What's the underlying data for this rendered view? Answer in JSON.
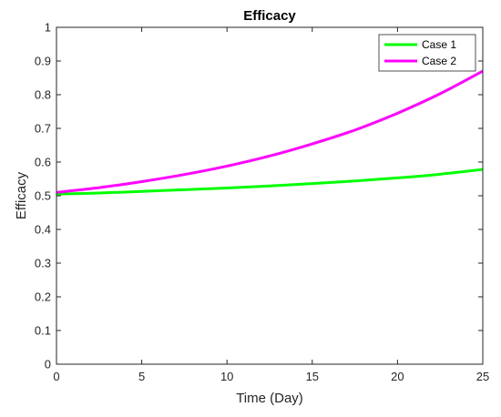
{
  "chart_data": {
    "type": "line",
    "title": "Efficacy",
    "xlabel": "Time (Day)",
    "ylabel": "Efficacy",
    "xlim": [
      0,
      25
    ],
    "ylim": [
      0,
      1
    ],
    "xticks": [
      0,
      5,
      10,
      15,
      20,
      25
    ],
    "yticks": [
      0,
      0.1,
      0.2,
      0.3,
      0.4,
      0.5,
      0.6,
      0.7,
      0.8,
      0.9,
      1
    ],
    "xtick_labels": [
      "0",
      "5",
      "10",
      "15",
      "20",
      "25"
    ],
    "ytick_labels": [
      "0",
      "0.1",
      "0.2",
      "0.3",
      "0.4",
      "0.5",
      "0.6",
      "0.7",
      "0.8",
      "0.9",
      "1"
    ],
    "grid": false,
    "legend_position": "top-right",
    "x": [
      0,
      2.5,
      5,
      7.5,
      10,
      12.5,
      15,
      17.5,
      20,
      22.5,
      25
    ],
    "series": [
      {
        "name": "Case 1",
        "color": "#00ff00",
        "values": [
          0.505,
          0.508,
          0.513,
          0.518,
          0.523,
          0.529,
          0.536,
          0.544,
          0.553,
          0.564,
          0.578
        ]
      },
      {
        "name": "Case 2",
        "color": "#ff00ff",
        "values": [
          0.51,
          0.524,
          0.542,
          0.563,
          0.588,
          0.618,
          0.654,
          0.695,
          0.745,
          0.803,
          0.87
        ]
      }
    ]
  }
}
